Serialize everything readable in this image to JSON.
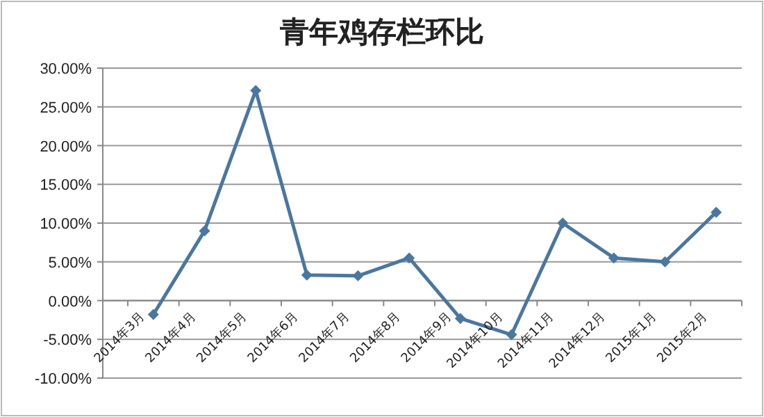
{
  "chart_data": {
    "type": "line",
    "title": "青年鸡存栏环比",
    "categories": [
      "2014年3月",
      "2014年4月",
      "2014年5月",
      "2014年6月",
      "2014年7月",
      "2014年8月",
      "2014年9月",
      "2014年10月",
      "2014年11月",
      "2014年12月",
      "2015年1月",
      "2015年2月"
    ],
    "series": [
      {
        "color": "#4a77a0",
        "values": [
          -1.8,
          9.0,
          27.1,
          3.3,
          3.2,
          5.5,
          -2.3,
          -4.4,
          10.0,
          5.5,
          5.0,
          11.4
        ]
      }
    ],
    "ylim": [
      -10,
      30
    ],
    "yticks": [
      {
        "value": -10,
        "label": "-10.00%"
      },
      {
        "value": -5,
        "label": "-5.00%"
      },
      {
        "value": 0,
        "label": "0.00%"
      },
      {
        "value": 5,
        "label": "5.00%"
      },
      {
        "value": 10,
        "label": "10.00%"
      },
      {
        "value": 15,
        "label": "15.00%"
      },
      {
        "value": 20,
        "label": "20.00%"
      },
      {
        "value": 25,
        "label": "25.00%"
      },
      {
        "value": 30,
        "label": "30.00%"
      }
    ],
    "grid": "y",
    "marker": "diamond",
    "legend": false
  }
}
